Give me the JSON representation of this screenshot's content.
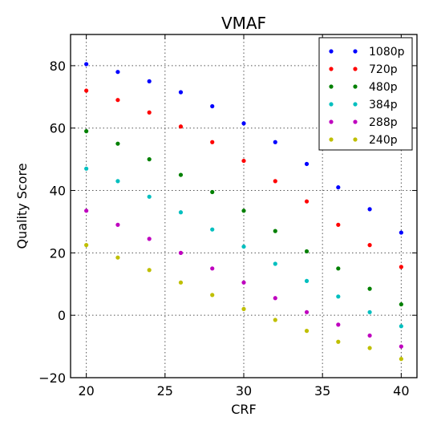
{
  "chart_data": {
    "type": "scatter",
    "title": "VMAF",
    "xlabel": "CRF",
    "ylabel": "Quality Score",
    "xlim": [
      19,
      41
    ],
    "ylim": [
      -20,
      90
    ],
    "xticks": [
      20,
      25,
      30,
      35,
      40
    ],
    "yticks": [
      -20,
      0,
      20,
      40,
      60,
      80
    ],
    "xtick_labels": [
      "20",
      "25",
      "30",
      "35",
      "40"
    ],
    "ytick_labels": [
      "−20",
      "0",
      "20",
      "40",
      "60",
      "80"
    ],
    "grid": true,
    "legend_position": "top-right",
    "x": [
      20,
      22,
      24,
      26,
      28,
      30,
      32,
      34,
      36,
      38,
      40
    ],
    "series": [
      {
        "name": "1080p",
        "color": "#0000ff",
        "values": [
          80.5,
          78,
          75,
          71.5,
          67,
          61.5,
          55.5,
          48.5,
          41,
          34,
          26.5
        ]
      },
      {
        "name": "720p",
        "color": "#ff0000",
        "values": [
          72,
          69,
          65,
          60.5,
          55.5,
          49.5,
          43,
          36.5,
          29,
          22.5,
          15.5
        ]
      },
      {
        "name": "480p",
        "color": "#008000",
        "values": [
          59,
          55,
          50,
          45,
          39.5,
          33.5,
          27,
          20.5,
          15,
          8.5,
          3.5
        ]
      },
      {
        "name": "384p",
        "color": "#00bfbf",
        "values": [
          47,
          43,
          38,
          33,
          27.5,
          22,
          16.5,
          11,
          6,
          1,
          -3.5
        ]
      },
      {
        "name": "288p",
        "color": "#bf00bf",
        "values": [
          33.5,
          29,
          24.5,
          20,
          15,
          10.5,
          5.5,
          1,
          -3,
          -6.5,
          -10
        ]
      },
      {
        "name": "240p",
        "color": "#bfbf00",
        "values": [
          22.5,
          18.5,
          14.5,
          10.5,
          6.5,
          2,
          -1.5,
          -5,
          -8.5,
          -10.5,
          -14
        ]
      }
    ]
  }
}
